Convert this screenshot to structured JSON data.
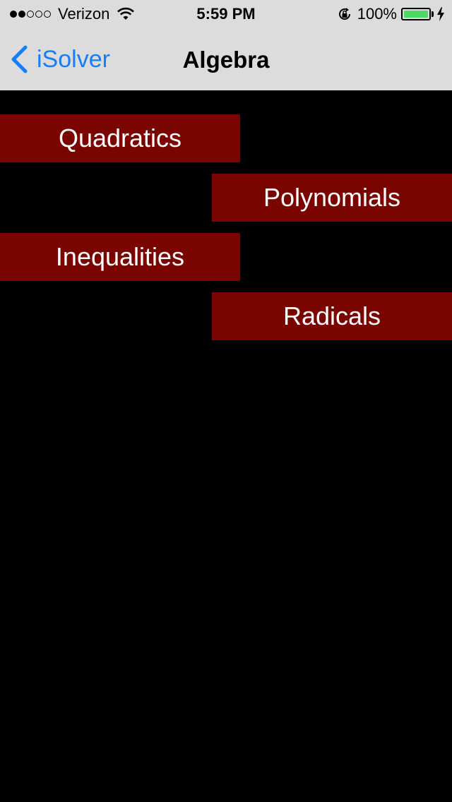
{
  "status_bar": {
    "signal": {
      "filled": 2,
      "total": 5
    },
    "carrier": "Verizon",
    "time": "5:59 PM",
    "battery_percent": "100%",
    "battery_level": 1.0,
    "battery_color": "#4cd964",
    "icons": [
      "wifi-icon",
      "rotation-lock-icon",
      "battery-icon",
      "charging-bolt-icon"
    ]
  },
  "nav": {
    "back_label": "iSolver",
    "title": "Algebra",
    "accent": "#157efb"
  },
  "menu": {
    "button_color": "#7a0500",
    "items": [
      {
        "label": "Quadratics"
      },
      {
        "label": "Polynomials"
      },
      {
        "label": "Inequalities"
      },
      {
        "label": "Radicals"
      }
    ]
  }
}
